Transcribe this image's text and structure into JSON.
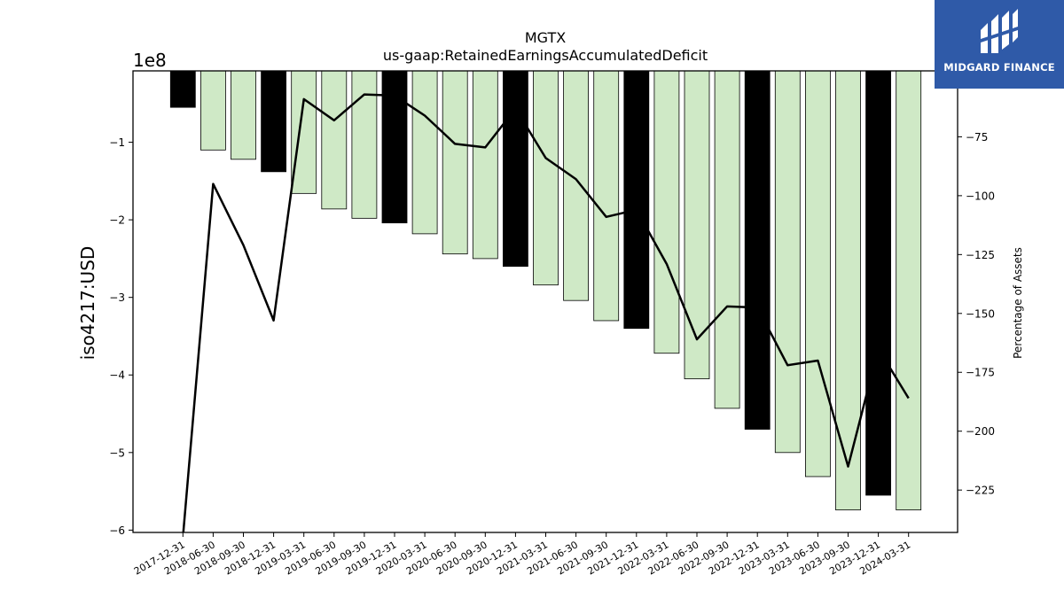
{
  "chart_data": {
    "type": "bar",
    "title": "MGTX",
    "subtitle": "us-gaap:RetainedEarningsAccumulatedDeficit",
    "ylabel": "iso4217:USD",
    "y2label": "Percentage of Assets",
    "y_offset_text": "1e8",
    "ylim": [
      -6.03,
      -0.08
    ],
    "y2lim": [
      -243,
      -47
    ],
    "yticks": [
      -1,
      -2,
      -3,
      -4,
      -5,
      -6
    ],
    "y2ticks": [
      -75,
      -100,
      -125,
      -150,
      -175,
      -200,
      -225
    ],
    "categories": [
      "2017-12-31",
      "2018-06-30",
      "2018-09-30",
      "2018-12-31",
      "2019-03-31",
      "2019-06-30",
      "2019-09-30",
      "2019-12-31",
      "2020-03-31",
      "2020-06-30",
      "2020-09-30",
      "2020-12-31",
      "2021-03-31",
      "2021-06-30",
      "2021-09-30",
      "2021-12-31",
      "2022-03-31",
      "2022-06-30",
      "2022-09-30",
      "2022-12-31",
      "2023-03-31",
      "2023-06-30",
      "2023-09-30",
      "2023-12-31",
      "2024-03-31"
    ],
    "series": [
      {
        "values": [
          -0.55,
          -1.1,
          -1.22,
          -1.38,
          -1.66,
          -1.86,
          -1.98,
          -2.04,
          -2.18,
          -2.44,
          -2.5,
          -2.6,
          -2.84,
          -3.04,
          -3.3,
          -3.4,
          -3.72,
          -4.05,
          -4.43,
          -4.7,
          -5.0,
          -5.31,
          -5.74,
          -5.55,
          -5.74
        ],
        "annual": [
          true,
          false,
          false,
          true,
          false,
          false,
          false,
          true,
          false,
          false,
          false,
          true,
          false,
          false,
          false,
          true,
          false,
          false,
          false,
          true,
          false,
          false,
          false,
          true,
          false
        ]
      },
      {
        "values": [
          -245,
          -95,
          -121,
          -153,
          -59,
          -68,
          -57,
          -57.5,
          -66,
          -78,
          -79.5,
          -63,
          -84,
          -93,
          -109,
          -106,
          -129,
          -161,
          -147,
          -147.5,
          -172,
          -170,
          -215,
          -165,
          -186
        ]
      }
    ],
    "colors": {
      "annual_bar": "#000000",
      "quarter_bar": "#cfe9c6",
      "line": "#000000"
    }
  },
  "logo": {
    "text": "MIDGARD FINANCE",
    "bg": "#2f5aa8"
  }
}
